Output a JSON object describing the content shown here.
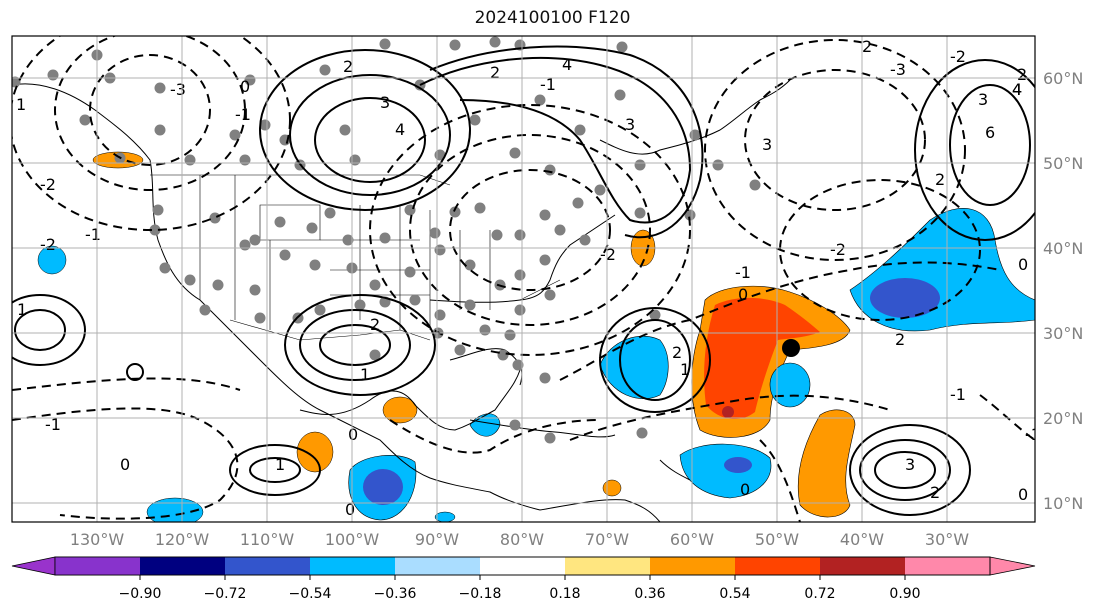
{
  "title": "2024100100 F120",
  "map": {
    "lon_labels": [
      "130°W",
      "120°W",
      "110°W",
      "100°W",
      "90°W",
      "80°W",
      "70°W",
      "60°W",
      "50°W",
      "40°W",
      "30°W"
    ],
    "lat_labels": [
      "60°N",
      "50°N",
      "40°N",
      "30°N",
      "20°N",
      "10°N"
    ],
    "contour_labels": [
      "2",
      "3",
      "4",
      "2",
      "3",
      "4",
      "2",
      "3",
      "4",
      "0",
      "-1",
      "-2",
      "-3",
      "0",
      "-1",
      "-2",
      "-3",
      "2",
      "1",
      "0",
      "1",
      "2",
      "-1",
      "-2",
      "3",
      "4",
      "6",
      "2",
      "1",
      "3",
      "2",
      "-2",
      "-1",
      "-1",
      "0",
      "0",
      "-1",
      "1",
      "2",
      "1",
      "-1",
      "-2",
      "0",
      "2",
      "0",
      "0"
    ]
  },
  "colorbar": {
    "ticks": [
      "−0.90",
      "−0.72",
      "−0.54",
      "−0.36",
      "−0.18",
      "0.18",
      "0.36",
      "0.54",
      "0.72",
      "0.90"
    ],
    "colors": [
      "#9933cc",
      "#000080",
      "#3355cc",
      "#00bbff",
      "#aaddff",
      "#ffffff",
      "#ffe680",
      "#ff9900",
      "#ff4400",
      "#b22222",
      "#ff88aa"
    ]
  }
}
